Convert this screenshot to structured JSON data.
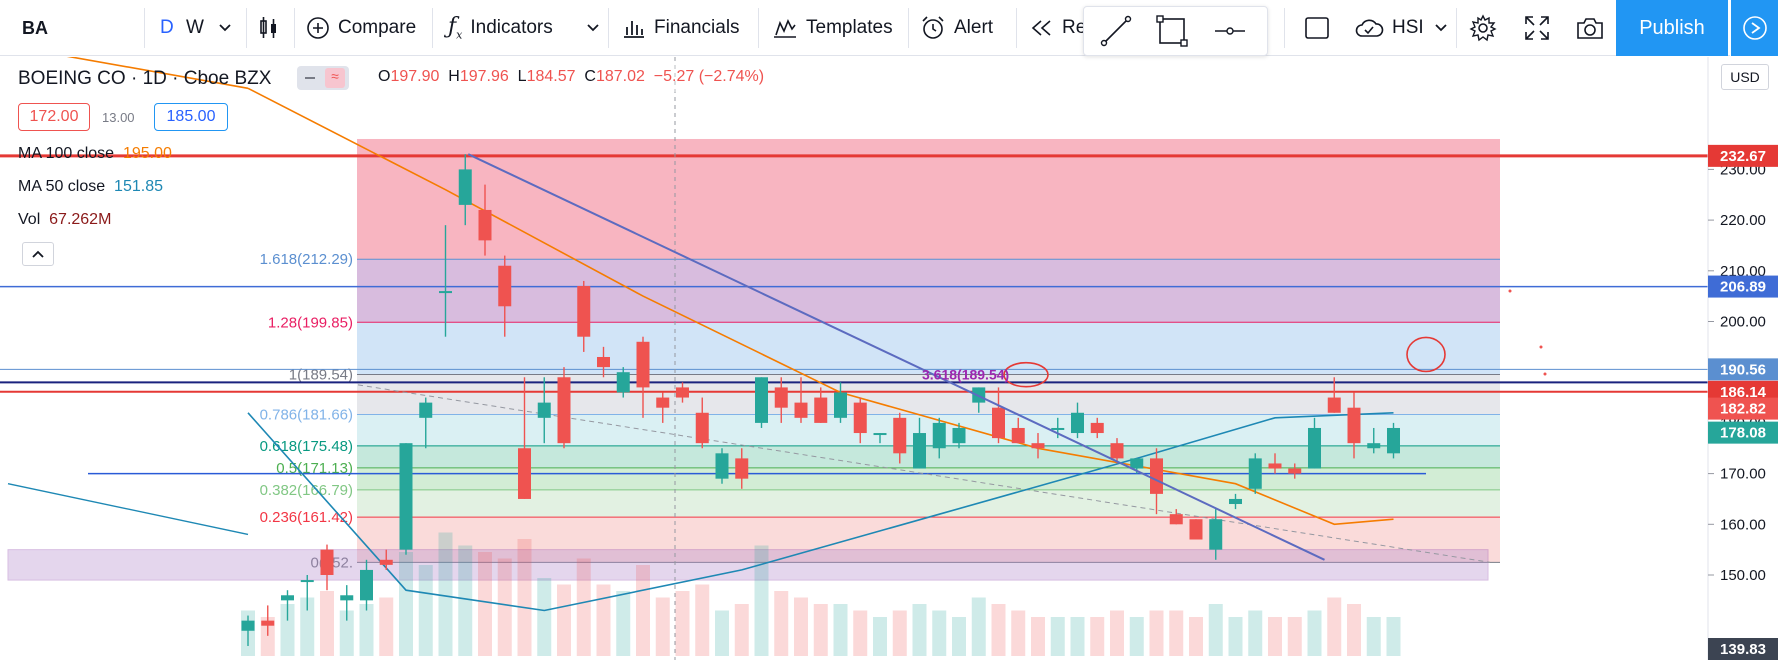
{
  "toolbar": {
    "symbol": "BA",
    "timeframes": [
      "D",
      "W"
    ],
    "compare": "Compare",
    "indicators": "Indicators",
    "financials": "Financials",
    "templates": "Templates",
    "alert": "Alert",
    "replay": "Re",
    "exchange": "HSI",
    "publish": "Publish"
  },
  "legend": {
    "title": "BOEING CO · 1D · Cboe BZX",
    "ohlc": {
      "o_label": "O",
      "o": "197.90",
      "h_label": "H",
      "h": "197.96",
      "l_label": "L",
      "l": "184.57",
      "c_label": "C",
      "c": "187.02",
      "change": "−5.27 (−2.74%)"
    },
    "price_left": "172.00",
    "price_mid": "13.00",
    "price_right": "185.00",
    "ma100_label": "MA 100 close",
    "ma100_value": "195.00",
    "ma50_label": "MA 50 close",
    "ma50_value": "151.85",
    "vol_label": "Vol",
    "vol_value": "67.262M"
  },
  "currency": "USD",
  "colors": {
    "up": "#26a69a",
    "down": "#ef5350",
    "accent": "#2196f3",
    "ma100": "#f57c00",
    "ma50": "#1e88b4"
  },
  "chart_data": {
    "type": "candlestick",
    "symbol": "BOEING CO",
    "interval": "1D",
    "exchange": "Cboe BZX",
    "ylim": [
      139.83,
      236
    ],
    "y_ticks": [
      150,
      160,
      170,
      180,
      190,
      200,
      210,
      220,
      230
    ],
    "y_tick_labels": [
      "150.00",
      "160.00",
      "170.00",
      "180.00",
      "190.00",
      "200.00",
      "210.00",
      "220.00",
      "230.00"
    ],
    "price_labels": [
      {
        "value": 232.67,
        "text": "232.67",
        "color": "#e53935"
      },
      {
        "value": 206.89,
        "text": "206.89",
        "color": "#3f6cd6"
      },
      {
        "value": 190.56,
        "text": "190.56",
        "color": "#5b8fd0"
      },
      {
        "value": 190.56,
        "text": "190.56",
        "color": "#1a237e",
        "offset": 1
      },
      {
        "value": 186.14,
        "text": "186.14",
        "color": "#e53935"
      },
      {
        "value": 182.82,
        "text": "182.82",
        "color": "#ef5350"
      },
      {
        "value": 178.08,
        "text": "178.08",
        "color": "#26a69a"
      },
      {
        "value": 139.83,
        "text": "139.83",
        "color": "#3c4452"
      }
    ],
    "fibonacci": [
      {
        "level": "1.618",
        "text": "1.618(212.29)",
        "value": 212.29,
        "color": "#5b8fd0"
      },
      {
        "level": "1.28",
        "text": "1.28(199.85)",
        "value": 199.85,
        "color": "#e91e63"
      },
      {
        "level": "1",
        "text": "1(189.54)",
        "value": 189.54,
        "color": "#787b86"
      },
      {
        "level": "0.786",
        "text": "0.786(181.66)",
        "value": 181.66,
        "color": "#81b3e8"
      },
      {
        "level": "0.618",
        "text": "0.618(175.48)",
        "value": 175.48,
        "color": "#089981"
      },
      {
        "level": "0.5",
        "text": "0.5(171.13)",
        "value": 171.13,
        "color": "#4caf50"
      },
      {
        "level": "0.382",
        "text": "0.382(166.79)",
        "value": 166.79,
        "color": "#81c784"
      },
      {
        "level": "0.236",
        "text": "0.236(161.42)",
        "value": 161.42,
        "color": "#f23645"
      },
      {
        "level": "0",
        "text": "0(152.",
        "value": 152.5,
        "color": "#787b86"
      }
    ],
    "fib_annotation": "3.618(189.54)",
    "candles": [
      {
        "o": 139,
        "h": 142,
        "l": 136,
        "c": 141
      },
      {
        "o": 141,
        "h": 144,
        "l": 138,
        "c": 140
      },
      {
        "o": 145,
        "h": 147,
        "l": 141,
        "c": 146
      },
      {
        "o": 149,
        "h": 150,
        "l": 143,
        "c": 149
      },
      {
        "o": 155,
        "h": 156,
        "l": 147,
        "c": 150
      },
      {
        "o": 145,
        "h": 148,
        "l": 141,
        "c": 146
      },
      {
        "o": 145,
        "h": 153,
        "l": 143,
        "c": 151
      },
      {
        "o": 153,
        "h": 155,
        "l": 151,
        "c": 152
      },
      {
        "o": 155,
        "h": 176,
        "l": 154,
        "c": 176
      },
      {
        "o": 181,
        "h": 185,
        "l": 175,
        "c": 184
      },
      {
        "o": 206,
        "h": 219,
        "l": 197,
        "c": 206
      },
      {
        "o": 223,
        "h": 233,
        "l": 219,
        "c": 230
      },
      {
        "o": 222,
        "h": 227,
        "l": 213,
        "c": 216
      },
      {
        "o": 211,
        "h": 213,
        "l": 197,
        "c": 203
      },
      {
        "o": 175,
        "h": 189,
        "l": 165,
        "c": 165
      },
      {
        "o": 181,
        "h": 189,
        "l": 176,
        "c": 184
      },
      {
        "o": 189,
        "h": 191,
        "l": 175,
        "c": 176
      },
      {
        "o": 207,
        "h": 208,
        "l": 194,
        "c": 197
      },
      {
        "o": 193,
        "h": 195,
        "l": 189,
        "c": 191
      },
      {
        "o": 186,
        "h": 191,
        "l": 185,
        "c": 190
      },
      {
        "o": 196,
        "h": 197,
        "l": 181,
        "c": 187
      },
      {
        "o": 185,
        "h": 186,
        "l": 180,
        "c": 183
      },
      {
        "o": 187,
        "h": 188,
        "l": 184,
        "c": 185
      },
      {
        "o": 182,
        "h": 185,
        "l": 175,
        "c": 176
      },
      {
        "o": 169,
        "h": 175,
        "l": 168,
        "c": 174
      },
      {
        "o": 173,
        "h": 175,
        "l": 167,
        "c": 169
      },
      {
        "o": 180,
        "h": 189,
        "l": 179,
        "c": 189
      },
      {
        "o": 187,
        "h": 189,
        "l": 180,
        "c": 183
      },
      {
        "o": 184,
        "h": 189,
        "l": 180,
        "c": 181
      },
      {
        "o": 185,
        "h": 187,
        "l": 180,
        "c": 180
      },
      {
        "o": 181,
        "h": 188,
        "l": 180,
        "c": 186
      },
      {
        "o": 184,
        "h": 185,
        "l": 176,
        "c": 178
      },
      {
        "o": 178,
        "h": 178,
        "l": 176,
        "c": 178
      },
      {
        "o": 181,
        "h": 182,
        "l": 172,
        "c": 174
      },
      {
        "o": 171,
        "h": 181,
        "l": 171,
        "c": 178
      },
      {
        "o": 175,
        "h": 181,
        "l": 173,
        "c": 180
      },
      {
        "o": 176,
        "h": 180,
        "l": 175,
        "c": 179
      },
      {
        "o": 184,
        "h": 187,
        "l": 182,
        "c": 187
      },
      {
        "o": 183,
        "h": 187,
        "l": 176,
        "c": 177
      },
      {
        "o": 179,
        "h": 181,
        "l": 176,
        "c": 176
      },
      {
        "o": 176,
        "h": 178,
        "l": 173,
        "c": 175
      },
      {
        "o": 179,
        "h": 181,
        "l": 177,
        "c": 179
      },
      {
        "o": 178,
        "h": 184,
        "l": 177,
        "c": 182
      },
      {
        "o": 180,
        "h": 181,
        "l": 177,
        "c": 178
      },
      {
        "o": 176,
        "h": 177,
        "l": 172,
        "c": 173
      },
      {
        "o": 171,
        "h": 173,
        "l": 170,
        "c": 173
      },
      {
        "o": 173,
        "h": 175,
        "l": 162,
        "c": 166
      },
      {
        "o": 162,
        "h": 163,
        "l": 160,
        "c": 160
      },
      {
        "o": 161,
        "h": 161,
        "l": 157,
        "c": 157
      },
      {
        "o": 155,
        "h": 163,
        "l": 153,
        "c": 161
      },
      {
        "o": 164,
        "h": 166,
        "l": 163,
        "c": 165
      },
      {
        "o": 167,
        "h": 174,
        "l": 166,
        "c": 173
      },
      {
        "o": 172,
        "h": 174,
        "l": 170,
        "c": 171
      },
      {
        "o": 171,
        "h": 172,
        "l": 169,
        "c": 170
      },
      {
        "o": 171,
        "h": 181,
        "l": 171,
        "c": 179
      },
      {
        "o": 185,
        "h": 189,
        "l": 182,
        "c": 182
      },
      {
        "o": 183,
        "h": 186,
        "l": 173,
        "c": 176
      },
      {
        "o": 175,
        "h": 179,
        "l": 174,
        "c": 176
      },
      {
        "o": 174,
        "h": 180,
        "l": 173,
        "c": 179
      }
    ],
    "volume": [
      0.35,
      0.3,
      0.4,
      0.45,
      0.5,
      0.35,
      0.4,
      0.45,
      0.8,
      0.7,
      0.95,
      0.85,
      0.8,
      0.75,
      0.9,
      0.6,
      0.55,
      0.75,
      0.55,
      0.5,
      0.7,
      0.45,
      0.5,
      0.55,
      0.35,
      0.4,
      0.85,
      0.5,
      0.45,
      0.4,
      0.4,
      0.35,
      0.3,
      0.35,
      0.4,
      0.35,
      0.3,
      0.45,
      0.4,
      0.35,
      0.3,
      0.3,
      0.3,
      0.3,
      0.35,
      0.3,
      0.35,
      0.35,
      0.3,
      0.4,
      0.3,
      0.35,
      0.3,
      0.3,
      0.35,
      0.45,
      0.4,
      0.3,
      0.3
    ],
    "ma100": [
      {
        "x": 0,
        "y": 246
      },
      {
        "x": 10,
        "y": 226
      },
      {
        "x": 20,
        "y": 205
      },
      {
        "x": 30,
        "y": 186
      },
      {
        "x": 40,
        "y": 175
      },
      {
        "x": 50,
        "y": 168
      },
      {
        "x": 55,
        "y": 160
      },
      {
        "x": 58,
        "y": 161
      }
    ],
    "ma50": [
      {
        "x": 0,
        "y": 182
      },
      {
        "x": 8,
        "y": 147
      },
      {
        "x": 15,
        "y": 143
      },
      {
        "x": 25,
        "y": 151
      },
      {
        "x": 35,
        "y": 162
      },
      {
        "x": 45,
        "y": 173
      },
      {
        "x": 52,
        "y": 181
      },
      {
        "x": 58,
        "y": 182
      }
    ],
    "trendline": [
      {
        "x": 11,
        "y": 233
      },
      {
        "x": 54,
        "y": 153
      }
    ],
    "horizontal_lines": [
      232.67,
      206.89,
      190.56,
      186.14
    ]
  }
}
